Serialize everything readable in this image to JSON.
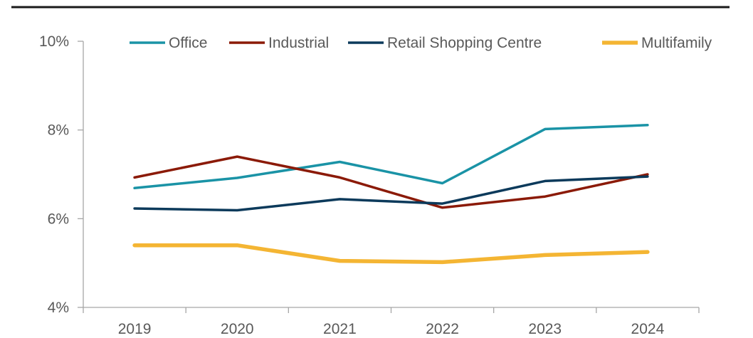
{
  "chart_data": {
    "type": "line",
    "title": "",
    "xlabel": "",
    "ylabel": "",
    "categories": [
      "2019",
      "2020",
      "2021",
      "2022",
      "2023",
      "2024"
    ],
    "ylim": [
      4,
      10
    ],
    "yticks": [
      4,
      6,
      8,
      10
    ],
    "ytick_labels": [
      "4%",
      "6%",
      "8%",
      "10%"
    ],
    "grid": false,
    "legend_position": "top",
    "series": [
      {
        "name": "Office",
        "color": "#1a93a6",
        "values": [
          6.69,
          6.92,
          7.28,
          6.8,
          8.02,
          8.11
        ]
      },
      {
        "name": "Industrial",
        "color": "#8b1a07",
        "values": [
          6.93,
          7.4,
          6.93,
          6.25,
          6.5,
          7.0
        ]
      },
      {
        "name": "Retail Shopping Centre",
        "color": "#0c3a5b",
        "values": [
          6.23,
          6.19,
          6.44,
          6.34,
          6.85,
          6.95
        ]
      },
      {
        "name": "Multifamily",
        "color": "#f4b533",
        "values": [
          5.4,
          5.4,
          5.05,
          5.02,
          5.18,
          5.25
        ]
      }
    ]
  },
  "colors": {
    "top_rule": "#1a1a1a",
    "axis": "#a6a6a6",
    "text": "#595959"
  }
}
